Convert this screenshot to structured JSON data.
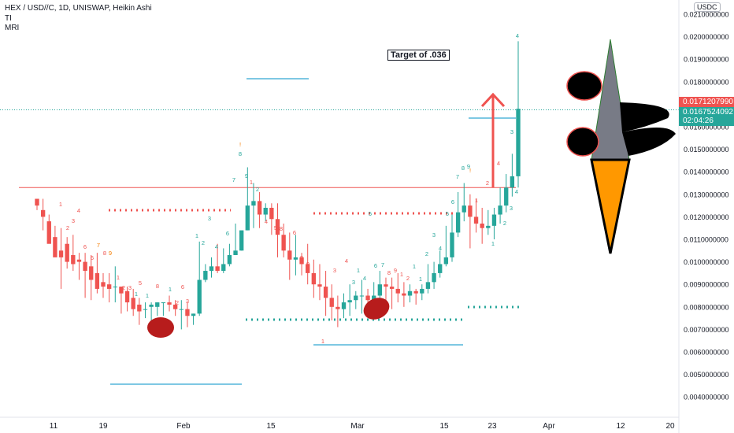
{
  "header": {
    "symbol_line": "HEX / USD//C, 1D, UNISWAP, Heikin Ashi",
    "indicator_1": "TI",
    "indicator_2": "MRI"
  },
  "annotation": {
    "target_label": "Target of .036"
  },
  "price_tags": {
    "currency": "USDC",
    "red_tag": "0.0171207990",
    "teal_tag_price": "0.0167524092",
    "teal_tag_time": "02:04:26"
  },
  "colors": {
    "up": "#26a69a",
    "down": "#ef5350",
    "hline": "#ef5350",
    "blue_line": "#7ec8e3",
    "cone_grey": "#787b86",
    "cone_orange": "#ff9800",
    "blob_red": "#b71c1c"
  },
  "chart_data": {
    "type": "candlestick",
    "style": "Heikin Ashi",
    "y_axis_ticks": [
      "0.0210000000",
      "0.0200000000",
      "0.0190000000",
      "0.0180000000",
      "0.0170000000",
      "0.0160000000",
      "0.0150000000",
      "0.0140000000",
      "0.0130000000",
      "0.0120000000",
      "0.0110000000",
      "0.0100000000",
      "0.0090000000",
      "0.0080000000",
      "0.0070000000",
      "0.0060000000",
      "0.0050000000",
      "0.0040000000"
    ],
    "ylim": [
      0.0034,
      0.0212
    ],
    "x_axis_ticks": [
      "11",
      "19",
      "Feb",
      "15",
      "Mar",
      "15",
      "23",
      "Apr",
      "12",
      "20"
    ],
    "candles": [
      [
        0.0128,
        0.0128,
        0.0125,
        0.0123
      ],
      [
        0.0123,
        0.0128,
        0.012,
        0.0114
      ],
      [
        0.0118,
        0.0121,
        0.0108,
        0.0111
      ],
      [
        0.0111,
        0.0116,
        0.0102,
        0.0105
      ],
      [
        0.0105,
        0.0115,
        0.0102,
        0.0088
      ],
      [
        0.0108,
        0.0111,
        0.01,
        0.0097
      ],
      [
        0.0103,
        0.0112,
        0.0099,
        0.0096
      ],
      [
        0.0101,
        0.0104,
        0.01,
        0.0092
      ],
      [
        0.01,
        0.0104,
        0.0096,
        0.0084
      ],
      [
        0.0098,
        0.0103,
        0.0092,
        0.0083
      ],
      [
        0.0095,
        0.0104,
        0.0088,
        0.0086
      ],
      [
        0.0091,
        0.0095,
        0.0089,
        0.0084
      ],
      [
        0.009,
        0.0095,
        0.0088,
        0.0082
      ],
      [
        0.0089,
        0.0098,
        0.0089,
        0.0082
      ],
      [
        0.0089,
        0.0089,
        0.0086,
        0.0077
      ],
      [
        0.0087,
        0.0089,
        0.0082,
        0.0078
      ],
      [
        0.0084,
        0.0088,
        0.0079,
        0.0076
      ],
      [
        0.0081,
        0.0084,
        0.0078,
        0.0072
      ],
      [
        0.0079,
        0.0082,
        0.0079,
        0.0075
      ],
      [
        0.008,
        0.0082,
        0.0081,
        0.007
      ],
      [
        0.008,
        0.0082,
        0.0082,
        0.0076
      ],
      [
        0.0082,
        0.0082,
        0.0082,
        0.0076
      ],
      [
        0.0082,
        0.0085,
        0.0081,
        0.0078
      ],
      [
        0.0081,
        0.0083,
        0.0079,
        0.0076
      ],
      [
        0.0079,
        0.0083,
        0.0079,
        0.007
      ],
      [
        0.0079,
        0.0082,
        0.0076,
        0.0071
      ],
      [
        0.0076,
        0.0077,
        0.0077,
        0.0072
      ],
      [
        0.0077,
        0.0109,
        0.0092,
        0.0076
      ],
      [
        0.0092,
        0.0099,
        0.0096,
        0.0091
      ],
      [
        0.0096,
        0.0102,
        0.0098,
        0.0093
      ],
      [
        0.0098,
        0.0108,
        0.0096,
        0.0095
      ],
      [
        0.0096,
        0.0106,
        0.0099,
        0.0095
      ],
      [
        0.0099,
        0.0108,
        0.0103,
        0.0098
      ],
      [
        0.0103,
        0.0117,
        0.0105,
        0.0103
      ],
      [
        0.0105,
        0.0112,
        0.0114,
        0.0105
      ],
      [
        0.0114,
        0.0142,
        0.0125,
        0.0114
      ],
      [
        0.0125,
        0.0135,
        0.0127,
        0.0115
      ],
      [
        0.0127,
        0.0131,
        0.0121,
        0.0115
      ],
      [
        0.0121,
        0.0126,
        0.0124,
        0.0118
      ],
      [
        0.0124,
        0.0126,
        0.0119,
        0.0112
      ],
      [
        0.0119,
        0.0126,
        0.0112,
        0.0102
      ],
      [
        0.0112,
        0.0117,
        0.0105,
        0.0102
      ],
      [
        0.0105,
        0.0113,
        0.0101,
        0.0092
      ],
      [
        0.0101,
        0.0112,
        0.0102,
        0.0094
      ],
      [
        0.0102,
        0.0104,
        0.0099,
        0.0094
      ],
      [
        0.0099,
        0.0108,
        0.0095,
        0.009
      ],
      [
        0.0095,
        0.0101,
        0.009,
        0.0084
      ],
      [
        0.009,
        0.0099,
        0.0089,
        0.0083
      ],
      [
        0.0089,
        0.0096,
        0.0084,
        0.0076
      ],
      [
        0.0084,
        0.009,
        0.008,
        0.0074
      ],
      [
        0.008,
        0.0085,
        0.0079,
        0.0071
      ],
      [
        0.0079,
        0.0086,
        0.0082,
        0.0075
      ],
      [
        0.0082,
        0.009,
        0.0083,
        0.0076
      ],
      [
        0.0083,
        0.0087,
        0.0085,
        0.0079
      ],
      [
        0.0085,
        0.0092,
        0.0085,
        0.0077
      ],
      [
        0.0085,
        0.0088,
        0.0083,
        0.008
      ],
      [
        0.0083,
        0.0091,
        0.0085,
        0.008
      ],
      [
        0.0085,
        0.0096,
        0.009,
        0.0083
      ],
      [
        0.009,
        0.0093,
        0.0089,
        0.0083
      ],
      [
        0.0089,
        0.0093,
        0.0088,
        0.0079
      ],
      [
        0.0088,
        0.0095,
        0.0086,
        0.0082
      ],
      [
        0.0086,
        0.0091,
        0.0085,
        0.008
      ],
      [
        0.0085,
        0.009,
        0.0087,
        0.0082
      ],
      [
        0.0087,
        0.0088,
        0.0086,
        0.0081
      ],
      [
        0.0086,
        0.009,
        0.0088,
        0.0083
      ],
      [
        0.0088,
        0.0099,
        0.0091,
        0.0086
      ],
      [
        0.0091,
        0.01,
        0.0095,
        0.0088
      ],
      [
        0.0095,
        0.0105,
        0.0099,
        0.0093
      ],
      [
        0.0099,
        0.0116,
        0.0102,
        0.0098
      ],
      [
        0.0102,
        0.0121,
        0.0113,
        0.01
      ],
      [
        0.0113,
        0.0131,
        0.0122,
        0.0111
      ],
      [
        0.0122,
        0.0135,
        0.0125,
        0.0118
      ],
      [
        0.0125,
        0.013,
        0.012,
        0.0106
      ],
      [
        0.012,
        0.0128,
        0.0117,
        0.0113
      ],
      [
        0.0117,
        0.0124,
        0.0115,
        0.0108
      ],
      [
        0.0115,
        0.0123,
        0.0116,
        0.0112
      ],
      [
        0.0116,
        0.0124,
        0.0121,
        0.011
      ],
      [
        0.0121,
        0.0133,
        0.0125,
        0.0117
      ],
      [
        0.0125,
        0.0139,
        0.0133,
        0.0122
      ],
      [
        0.0133,
        0.0148,
        0.0138,
        0.0129
      ],
      [
        0.0138,
        0.0198,
        0.0168,
        0.0133
      ]
    ],
    "resistance_level": 0.0133,
    "price_line": 0.01675,
    "labels": [
      "Target of .036"
    ]
  }
}
